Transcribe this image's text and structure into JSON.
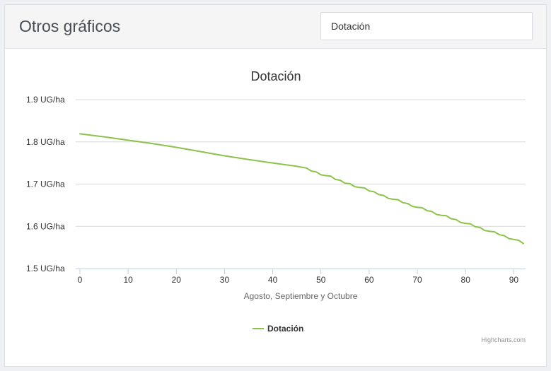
{
  "header": {
    "title": "Otros gráficos",
    "select_value": "Dotación"
  },
  "credits": "Highcharts.com",
  "colors": {
    "series": "#8bc34a",
    "grid": "#d8d8d8",
    "axis": "#c0d0e0"
  },
  "chart_data": {
    "type": "line",
    "title": "Dotación",
    "xlabel": "Agosto, Septiembre y Octubre",
    "ylabel": "",
    "xlim": [
      0,
      92
    ],
    "ylim": [
      1.5,
      1.9
    ],
    "x_ticks": [
      0,
      10,
      20,
      30,
      40,
      50,
      60,
      70,
      80,
      90
    ],
    "y_ticks": [
      "1.5 UG/ha",
      "1.6 UG/ha",
      "1.7 UG/ha",
      "1.8 UG/ha",
      "1.9 UG/ha"
    ],
    "y_tick_values": [
      1.5,
      1.6,
      1.7,
      1.8,
      1.9
    ],
    "grid": true,
    "legend": "bottom-center",
    "series": [
      {
        "name": "Dotación",
        "color": "#8bc34a",
        "x": [
          0,
          5,
          10,
          15,
          20,
          25,
          30,
          35,
          40,
          45,
          47,
          48,
          49,
          50,
          51,
          52,
          53,
          54,
          55,
          56,
          57,
          58,
          59,
          60,
          61,
          62,
          63,
          64,
          65,
          66,
          67,
          68,
          69,
          70,
          71,
          72,
          73,
          74,
          75,
          76,
          77,
          78,
          79,
          80,
          81,
          82,
          83,
          84,
          85,
          86,
          87,
          88,
          89,
          90,
          91,
          92
        ],
        "y": [
          1.819,
          1.812,
          1.804,
          1.796,
          1.787,
          1.777,
          1.767,
          1.758,
          1.75,
          1.742,
          1.738,
          1.731,
          1.729,
          1.722,
          1.72,
          1.719,
          1.711,
          1.709,
          1.702,
          1.701,
          1.694,
          1.692,
          1.691,
          1.684,
          1.682,
          1.675,
          1.673,
          1.666,
          1.664,
          1.663,
          1.656,
          1.654,
          1.647,
          1.645,
          1.644,
          1.637,
          1.635,
          1.628,
          1.626,
          1.625,
          1.618,
          1.616,
          1.609,
          1.607,
          1.606,
          1.599,
          1.597,
          1.59,
          1.588,
          1.587,
          1.58,
          1.578,
          1.571,
          1.569,
          1.567,
          1.559
        ]
      }
    ]
  }
}
